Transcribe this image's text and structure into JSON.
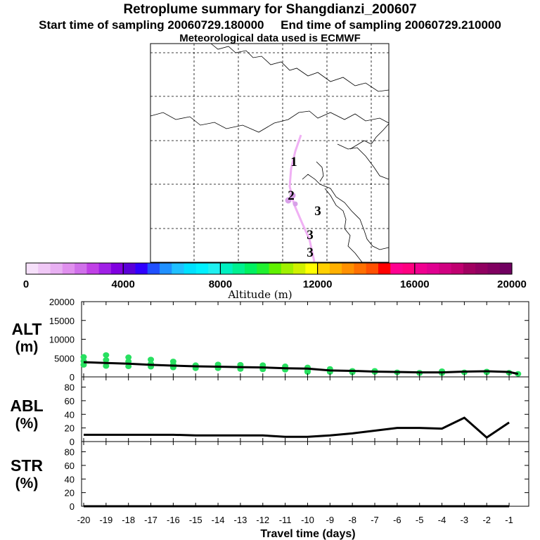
{
  "header": {
    "title": "Retroplume summary for Shangdianzi_200607",
    "subtitle": "Start time of sampling 20060729.180000     End time of sampling 20060729.210000",
    "met": "Meteorological data used is ECMWF"
  },
  "map": {
    "markers": [
      {
        "label": "1",
        "altitude_m": 1200
      },
      {
        "label": "2",
        "altitude_m": 1500
      },
      {
        "label": "3",
        "altitude_m": 1000
      },
      {
        "label": "3",
        "altitude_m": 1000
      },
      {
        "label": "3",
        "altitude_m": 1000
      }
    ]
  },
  "colorbar": {
    "label": "Altitude (m)",
    "ticks": [
      "0",
      "4000",
      "8000",
      "12000",
      "16000",
      "20000"
    ],
    "min": 0,
    "max": 20000,
    "colors": [
      "#f6e0fa",
      "#f0c8f6",
      "#e8b0f2",
      "#e090ee",
      "#d070ea",
      "#c040e6",
      "#a020e6",
      "#8000e0",
      "#5a00d8",
      "#3000ff",
      "#2050ff",
      "#2090ff",
      "#20c0ff",
      "#00e0ff",
      "#00f0ff",
      "#20f0f0",
      "#00f0c0",
      "#00f090",
      "#00f060",
      "#20f030",
      "#60f000",
      "#a0f000",
      "#d0f000",
      "#ffff00",
      "#ffd000",
      "#ffb000",
      "#ff9000",
      "#ff7000",
      "#ff5000",
      "#ff0000",
      "#ff0090",
      "#ff0080",
      "#f00090",
      "#e00090",
      "#d00080",
      "#c00070",
      "#a00060",
      "#900060",
      "#800060",
      "#700060"
    ]
  },
  "axes": {
    "alt_label": [
      "ALT",
      "(m)"
    ],
    "abl_label": [
      "ABL",
      "(%)"
    ],
    "str_label": [
      "STR",
      "(%)"
    ],
    "alt_ticks": [
      "20000",
      "15000",
      "10000",
      "5000",
      "0"
    ],
    "pct_ticks": [
      "80",
      "60",
      "40",
      "20",
      "0"
    ],
    "x_ticks": [
      "-20",
      "-19",
      "-18",
      "-17",
      "-16",
      "-15",
      "-14",
      "-13",
      "-12",
      "-11",
      "-10",
      "-9",
      "-8",
      "-7",
      "-6",
      "-5",
      "-4",
      "-3",
      "-2",
      "-1"
    ],
    "xlabel": "Travel time (days)"
  },
  "chart_data": [
    {
      "type": "line",
      "panel": "ALT",
      "ylabel": "ALT (m)",
      "ylim": [
        0,
        20000
      ],
      "xlim": [
        -20,
        -0.5
      ],
      "x": [
        -20,
        -19,
        -18,
        -17,
        -16,
        -15,
        -14,
        -13,
        -12,
        -11,
        -10,
        -9,
        -8,
        -7,
        -6,
        -5,
        -4,
        -3,
        -2,
        -1,
        -0.6
      ],
      "series": [
        {
          "name": "mean altitude",
          "values": [
            3900,
            3700,
            3500,
            3200,
            3000,
            2800,
            2700,
            2600,
            2500,
            2300,
            2200,
            1700,
            1600,
            1400,
            1300,
            1200,
            1200,
            1400,
            1500,
            1300,
            800
          ]
        },
        {
          "name": "particle altitudes (green)",
          "x": [
            -20,
            -20,
            -20,
            -19,
            -19,
            -19,
            -18,
            -18,
            -18,
            -17,
            -17,
            -17,
            -16,
            -16,
            -16,
            -15,
            -15,
            -14,
            -14,
            -13,
            -13,
            -12,
            -12,
            -11,
            -11,
            -10,
            -10,
            -10,
            -9,
            -9,
            -8,
            -8,
            -7,
            -7,
            -6,
            -5,
            -5,
            -4,
            -4,
            -3,
            -2,
            -2,
            -1,
            -0.6
          ],
          "values": [
            5300,
            4200,
            3200,
            5800,
            4500,
            2900,
            5200,
            4100,
            2800,
            4600,
            3500,
            2700,
            4100,
            3200,
            2500,
            3100,
            2300,
            3300,
            2300,
            3200,
            2100,
            3100,
            2000,
            2800,
            1900,
            2500,
            1600,
            1300,
            2100,
            1300,
            1600,
            1200,
            1600,
            1300,
            1200,
            1100,
            1000,
            1500,
            1000,
            1200,
            1400,
            1200,
            1100,
            800
          ]
        }
      ]
    },
    {
      "type": "line",
      "panel": "ABL",
      "ylabel": "ABL (%)",
      "ylim": [
        0,
        95
      ],
      "xlim": [
        -20,
        -0.5
      ],
      "x": [
        -20,
        -19,
        -18,
        -17,
        -16,
        -15,
        -14,
        -13,
        -12,
        -11,
        -10,
        -9,
        -8,
        -7,
        -6,
        -5,
        -4,
        -3,
        -2,
        -1
      ],
      "series": [
        {
          "name": "ABL",
          "values": [
            10,
            10,
            10,
            10,
            10,
            9,
            9,
            9,
            9,
            7,
            7,
            9,
            12,
            16,
            20,
            20,
            19,
            35,
            6,
            28
          ]
        }
      ]
    },
    {
      "type": "line",
      "panel": "STR",
      "ylabel": "STR (%)",
      "ylim": [
        0,
        95
      ],
      "xlim": [
        -20,
        -0.5
      ],
      "x": [
        -20,
        -19,
        -18,
        -17,
        -16,
        -15,
        -14,
        -13,
        -12,
        -11,
        -10,
        -9,
        -8,
        -7,
        -6,
        -5,
        -4,
        -3,
        -2,
        -1
      ],
      "series": [
        {
          "name": "STR",
          "values": [
            0,
            0,
            0,
            0,
            0,
            0,
            0,
            0,
            0,
            0,
            0,
            0,
            0,
            0,
            0,
            0,
            0,
            0,
            0,
            0
          ]
        }
      ]
    }
  ]
}
